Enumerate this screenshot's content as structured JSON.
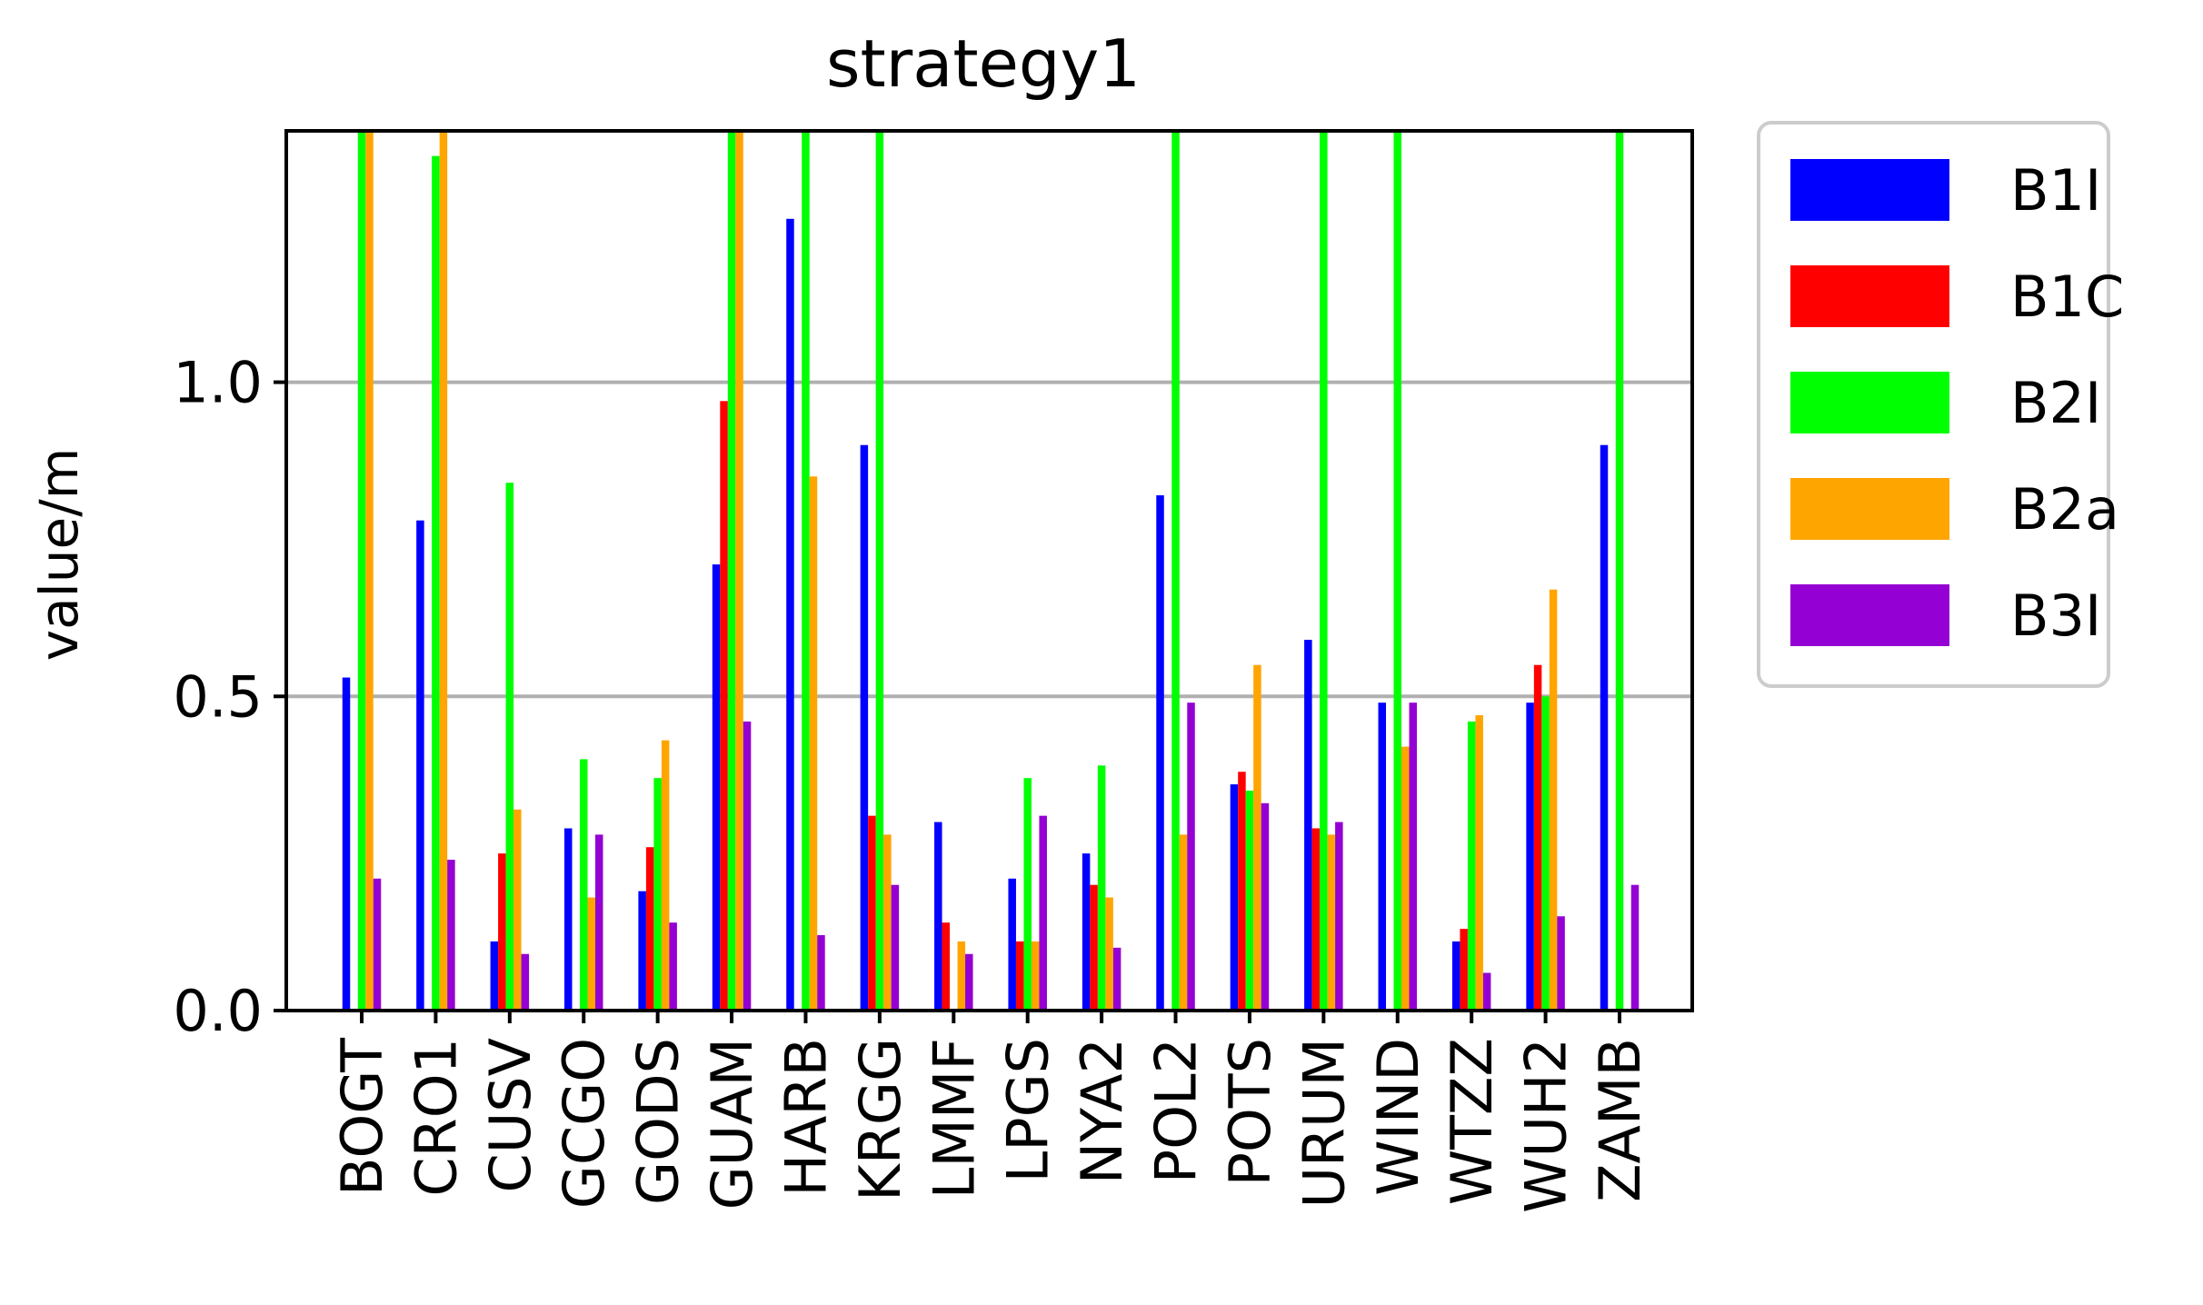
{
  "chart_data": {
    "type": "bar",
    "title": "strategy1",
    "xlabel": "",
    "ylabel": "value/m",
    "ylim": [
      0,
      1.4
    ],
    "yticks": [
      "0.0",
      "0.5",
      "1.0"
    ],
    "ytick_values": [
      0,
      0.5,
      1.0
    ],
    "grid": "horizontal",
    "legend_position": "outside-right",
    "categories": [
      "BOGT",
      "CRO1",
      "CUSV",
      "GCGO",
      "GODS",
      "GUAM",
      "HARB",
      "KRGG",
      "LMMF",
      "LPGS",
      "NYA2",
      "POL2",
      "POTS",
      "URUM",
      "WIND",
      "WTZZ",
      "WUH2",
      "ZAMB"
    ],
    "series": [
      {
        "name": "B1I",
        "color": "#0000ff",
        "values": [
          0.53,
          0.78,
          0.11,
          0.29,
          0.19,
          0.71,
          1.26,
          0.9,
          0.3,
          0.21,
          0.25,
          0.82,
          0.36,
          0.59,
          0.49,
          0.11,
          0.49,
          0.9
        ]
      },
      {
        "name": "B1C",
        "color": "#ff0000",
        "values": [
          0.0,
          0.0,
          0.25,
          0.0,
          0.26,
          0.97,
          0.0,
          0.31,
          0.14,
          0.11,
          0.2,
          0.0,
          0.38,
          0.29,
          0.0,
          0.13,
          0.55,
          0.0
        ]
      },
      {
        "name": "B2I",
        "color": "#00ff00",
        "values": [
          1.4,
          1.36,
          0.84,
          0.4,
          0.37,
          1.4,
          1.4,
          1.4,
          0.0,
          0.37,
          0.39,
          1.4,
          0.35,
          1.4,
          1.4,
          0.46,
          0.5,
          1.4
        ]
      },
      {
        "name": "B2a",
        "color": "#ffa500",
        "values": [
          1.4,
          1.4,
          0.32,
          0.18,
          0.43,
          1.4,
          0.85,
          0.28,
          0.11,
          0.11,
          0.18,
          0.28,
          0.55,
          0.28,
          0.42,
          0.47,
          0.67,
          0.0
        ]
      },
      {
        "name": "B3I",
        "color": "#9400d3",
        "values": [
          0.21,
          0.24,
          0.09,
          0.28,
          0.14,
          0.46,
          0.12,
          0.2,
          0.09,
          0.31,
          0.1,
          0.49,
          0.33,
          0.3,
          0.49,
          0.06,
          0.15,
          0.2
        ]
      }
    ]
  }
}
